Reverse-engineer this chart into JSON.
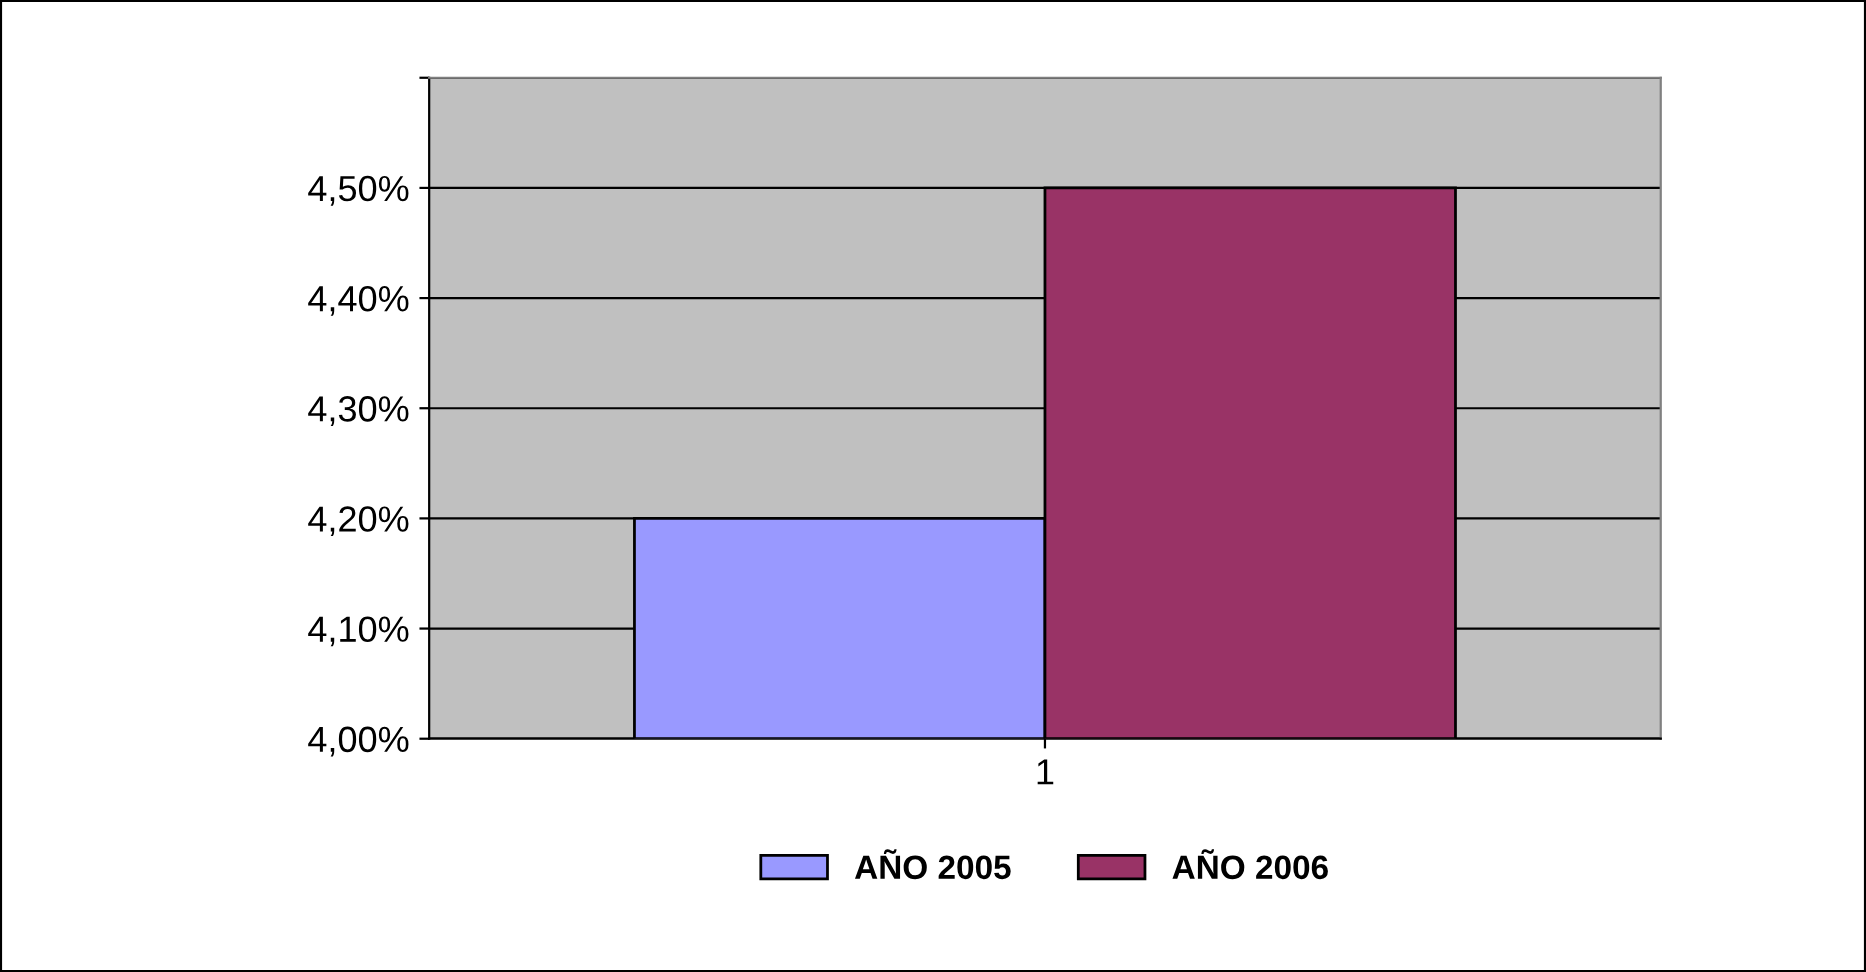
{
  "chart_data": {
    "type": "bar",
    "categories": [
      "1"
    ],
    "series": [
      {
        "name": "AÑO 2005",
        "color": "#9999ff",
        "values": [
          4.2
        ]
      },
      {
        "name": "AÑO 2006",
        "color": "#993366",
        "values": [
          4.5
        ]
      }
    ],
    "ylim": [
      4.0,
      4.6
    ],
    "yticks": [
      {
        "value": 4.0,
        "label": "4,00%"
      },
      {
        "value": 4.1,
        "label": "4,10%"
      },
      {
        "value": 4.2,
        "label": "4,20%"
      },
      {
        "value": 4.3,
        "label": "4,30%"
      },
      {
        "value": 4.4,
        "label": "4,40%"
      },
      {
        "value": 4.5,
        "label": "4,50%"
      },
      {
        "value": 4.6,
        "label": null
      }
    ],
    "grid": "y",
    "legend": "bottom"
  }
}
